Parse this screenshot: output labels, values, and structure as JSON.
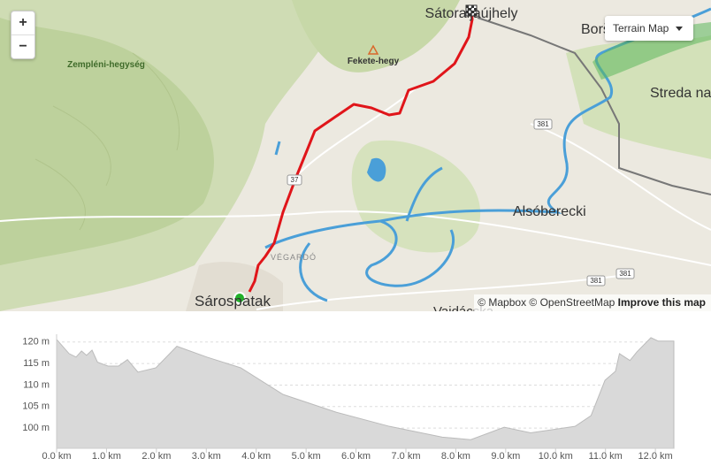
{
  "map": {
    "zoom_in": "+",
    "zoom_out": "−",
    "layer_select": "Terrain Map",
    "attribution": "© Mapbox © OpenStreetMap",
    "improve": "Improve this map",
    "labels": {
      "satoraljaujhely": "Sátoraljaújhely",
      "zempleni": "Zempléni-hegység",
      "fekete": "Fekete-hegy",
      "borsa": "Borša",
      "streda": "Streda nad Bodrogom",
      "alsoberecki": "Alsóberecki",
      "sarospatak": "Sárospatak",
      "vegardo": "VÉGARDÓ",
      "vajdacska": "Vajdácska"
    },
    "road_numbers": [
      "381",
      "381",
      "381",
      "37"
    ]
  },
  "chart_data": {
    "type": "area",
    "color": "#d9d9d9",
    "x": [
      0,
      0.25,
      0.39,
      0.5,
      0.6,
      0.71,
      0.82,
      1.03,
      1.24,
      1.42,
      1.63,
      1.99,
      2.41,
      3.01,
      3.69,
      4.54,
      5.6,
      6.67,
      7.73,
      8.3,
      8.97,
      9.5,
      10.39,
      10.71,
      10.99,
      11.2,
      11.28,
      11.49,
      11.63,
      11.91,
      12.06,
      12.37
    ],
    "values": [
      120.6,
      117.3,
      116.5,
      117.9,
      116.9,
      118.1,
      115.3,
      114.4,
      114.4,
      115.9,
      113.0,
      114.0,
      119.0,
      116.5,
      114.0,
      107.8,
      103.7,
      100.4,
      97.9,
      97.3,
      100.2,
      98.9,
      100.4,
      102.9,
      111.1,
      113.2,
      117.3,
      115.7,
      117.7,
      121.0,
      120.2,
      120.2
    ],
    "xlim": [
      0,
      12.37
    ],
    "ylim": [
      95.3,
      121.8
    ],
    "xticks": [
      {
        "value": 0,
        "label": "0.0 km"
      },
      {
        "value": 1,
        "label": "1.0 km"
      },
      {
        "value": 2,
        "label": "2.0 km"
      },
      {
        "value": 3,
        "label": "3.0 km"
      },
      {
        "value": 4,
        "label": "4.0 km"
      },
      {
        "value": 5,
        "label": "5.0 km"
      },
      {
        "value": 6,
        "label": "6.0 km"
      },
      {
        "value": 7,
        "label": "7.0 km"
      },
      {
        "value": 8,
        "label": "8.0 km"
      },
      {
        "value": 9,
        "label": "9.0 km"
      },
      {
        "value": 10,
        "label": "10.0 km"
      },
      {
        "value": 11,
        "label": "11.0 km"
      },
      {
        "value": 12,
        "label": "12.0 km"
      }
    ],
    "yticks": [
      {
        "value": 100,
        "label": "100 m"
      },
      {
        "value": 105,
        "label": "105 m"
      },
      {
        "value": 110,
        "label": "110 m"
      },
      {
        "value": 115,
        "label": "115 m"
      },
      {
        "value": 120,
        "label": "120 m"
      }
    ],
    "grid": true
  }
}
